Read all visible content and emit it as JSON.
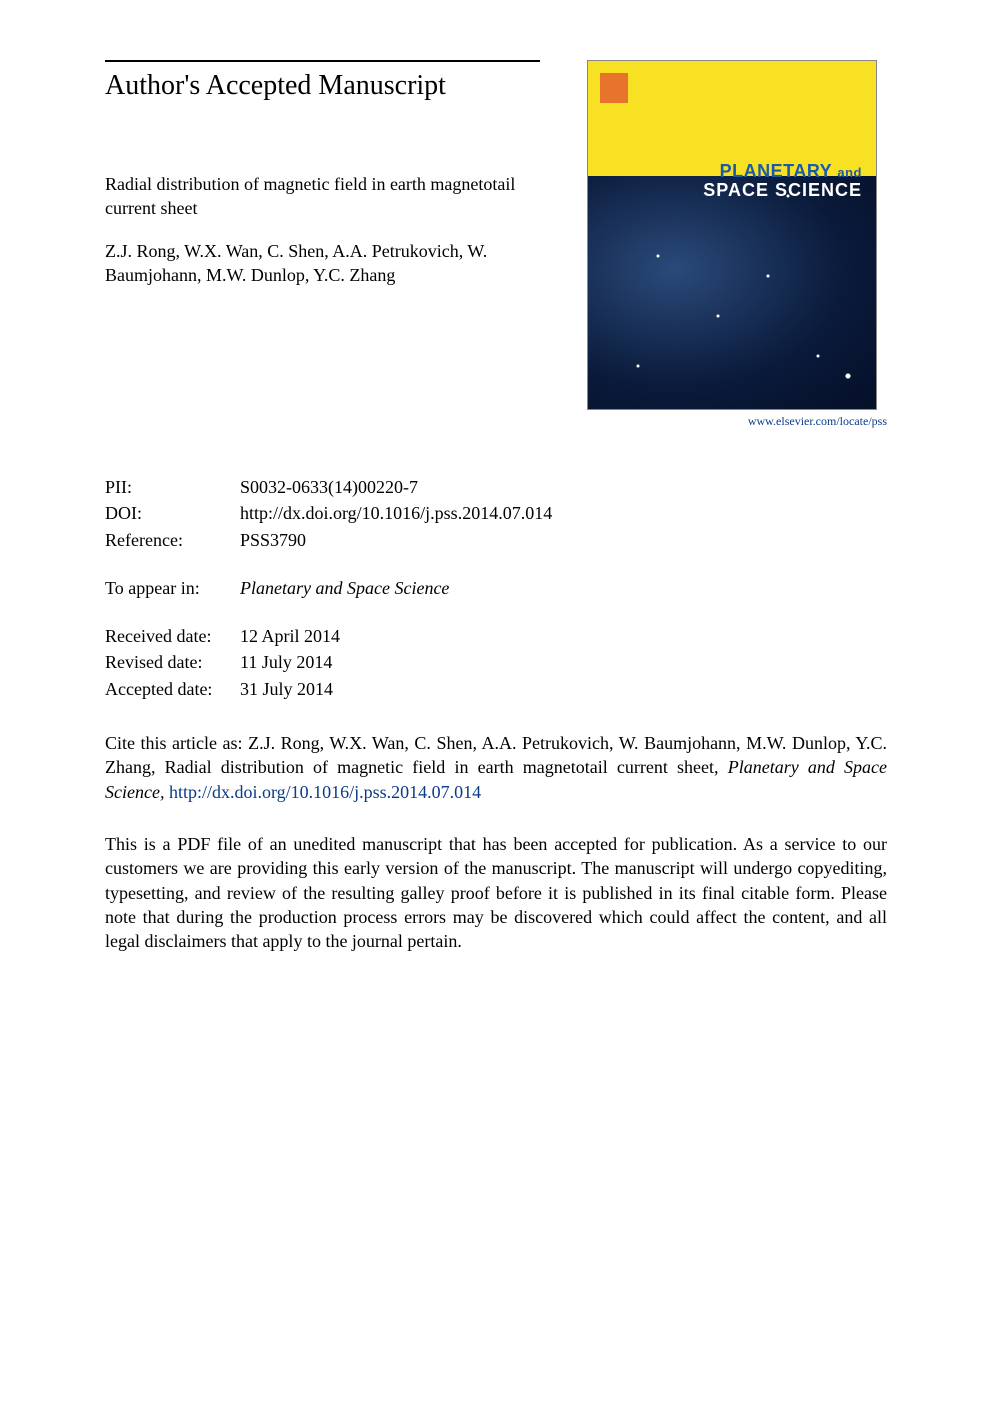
{
  "header": {
    "accepted_label": "Author's Accepted Manuscript"
  },
  "article": {
    "title": "Radial distribution of magnetic field in earth magnetotail current sheet",
    "authors": "Z.J. Rong, W.X. Wan, C. Shen, A.A. Petrukovich, W. Baumjohann, M.W. Dunlop, Y.C. Zhang"
  },
  "cover": {
    "journal_line1": "PLANETARY",
    "journal_and": "and",
    "journal_line2": "SPACE SCIENCE",
    "link": "www.elsevier.com/locate/pss",
    "top_color": "#f8e123",
    "bottom_color": "#0a1a3a",
    "logo_color": "#e8732c",
    "title_color_1": "#1a5aa8",
    "title_color_2": "#ffffff"
  },
  "meta": {
    "pii_label": "PII:",
    "pii_value": "S0032-0633(14)00220-7",
    "doi_label": "DOI:",
    "doi_value": "http://dx.doi.org/10.1016/j.pss.2014.07.014",
    "ref_label": "Reference:",
    "ref_value": "PSS3790"
  },
  "appear": {
    "label": "To appear in:",
    "journal": "Planetary and Space Science"
  },
  "dates": {
    "received_label": "Received date:",
    "received_value": "12 April 2014",
    "revised_label": "Revised date:",
    "revised_value": "11 July 2014",
    "accepted_label": "Accepted date:",
    "accepted_value": "31 July 2014"
  },
  "citation": {
    "prefix": "Cite this article as: Z.J. Rong, W.X. Wan, C. Shen, A.A. Petrukovich, W. Baumjohann, M.W. Dunlop, Y.C. Zhang, Radial distribution of magnetic field in earth magnetotail current sheet, ",
    "journal_italic": "Planetary and Space Science, ",
    "doi_link": "http://dx.doi.org/10.1016/j.pss.2014.07.014"
  },
  "disclaimer": {
    "text": "This is a PDF file of an unedited manuscript that has been accepted for publication. As a service to our customers we are providing this early version of the manuscript. The manuscript will undergo copyediting, typesetting, and review of the resulting galley proof before it is published in its final citable form. Please note that during the production process errors may be discovered which could affect the content, and all legal disclaimers that apply to the journal pertain."
  }
}
